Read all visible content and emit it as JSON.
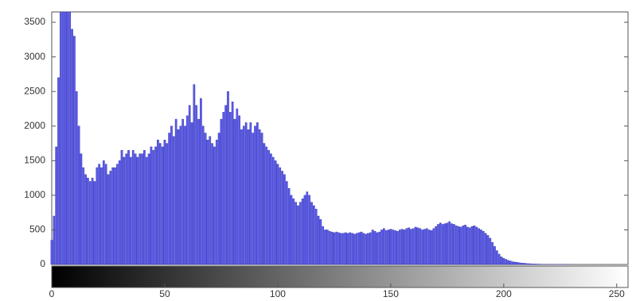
{
  "chart_data": {
    "type": "bar",
    "color": "#5b5bec",
    "edge_color": "#2f2fa8",
    "x": [
      0,
      1,
      2,
      3,
      4,
      5,
      6,
      7,
      8,
      9,
      10,
      11,
      12,
      13,
      14,
      15,
      16,
      17,
      18,
      19,
      20,
      21,
      22,
      23,
      24,
      25,
      26,
      27,
      28,
      29,
      30,
      31,
      32,
      33,
      34,
      35,
      36,
      37,
      38,
      39,
      40,
      41,
      42,
      43,
      44,
      45,
      46,
      47,
      48,
      49,
      50,
      51,
      52,
      53,
      54,
      55,
      56,
      57,
      58,
      59,
      60,
      61,
      62,
      63,
      64,
      65,
      66,
      67,
      68,
      69,
      70,
      71,
      72,
      73,
      74,
      75,
      76,
      77,
      78,
      79,
      80,
      81,
      82,
      83,
      84,
      85,
      86,
      87,
      88,
      89,
      90,
      91,
      92,
      93,
      94,
      95,
      96,
      97,
      98,
      99,
      100,
      101,
      102,
      103,
      104,
      105,
      106,
      107,
      108,
      109,
      110,
      111,
      112,
      113,
      114,
      115,
      116,
      117,
      118,
      119,
      120,
      121,
      122,
      123,
      124,
      125,
      126,
      127,
      128,
      129,
      130,
      131,
      132,
      133,
      134,
      135,
      136,
      137,
      138,
      139,
      140,
      141,
      142,
      143,
      144,
      145,
      146,
      147,
      148,
      149,
      150,
      151,
      152,
      153,
      154,
      155,
      156,
      157,
      158,
      159,
      160,
      161,
      162,
      163,
      164,
      165,
      166,
      167,
      168,
      169,
      170,
      171,
      172,
      173,
      174,
      175,
      176,
      177,
      178,
      179,
      180,
      181,
      182,
      183,
      184,
      185,
      186,
      187,
      188,
      189,
      190,
      191,
      192,
      193,
      194,
      195,
      196,
      197,
      198,
      199,
      200,
      201,
      202,
      203,
      204,
      205,
      206,
      207,
      208,
      209,
      210,
      211,
      212,
      213,
      214,
      215,
      216,
      217,
      218,
      219,
      220,
      221,
      222,
      223,
      224,
      225,
      226,
      227,
      228,
      229,
      230,
      231,
      232,
      233,
      234,
      235,
      236,
      237,
      238,
      239,
      240,
      241,
      242,
      243,
      244,
      245,
      246,
      247,
      248,
      249,
      250,
      251,
      252,
      253,
      254,
      255
    ],
    "values": [
      350,
      700,
      1700,
      2700,
      3650,
      3650,
      3650,
      3650,
      3650,
      3400,
      3300,
      2500,
      2000,
      1600,
      1400,
      1300,
      1250,
      1200,
      1250,
      1200,
      1400,
      1450,
      1400,
      1500,
      1450,
      1300,
      1350,
      1400,
      1400,
      1450,
      1500,
      1650,
      1550,
      1600,
      1650,
      1550,
      1650,
      1600,
      1550,
      1600,
      1600,
      1650,
      1550,
      1600,
      1700,
      1650,
      1700,
      1800,
      1750,
      1700,
      1800,
      1750,
      1900,
      2000,
      1850,
      2100,
      1950,
      2000,
      2100,
      2000,
      2150,
      2300,
      2050,
      2600,
      2300,
      2100,
      2400,
      2000,
      1900,
      1800,
      1850,
      1750,
      1700,
      1800,
      1900,
      2100,
      2200,
      2300,
      2500,
      2200,
      2350,
      2100,
      2250,
      2150,
      1950,
      2000,
      2050,
      1950,
      2050,
      1900,
      2000,
      2050,
      1950,
      1900,
      1750,
      1700,
      1650,
      1600,
      1550,
      1500,
      1450,
      1400,
      1350,
      1300,
      1200,
      1100,
      1000,
      950,
      900,
      850,
      900,
      950,
      1000,
      1050,
      1000,
      900,
      850,
      800,
      700,
      650,
      550,
      500,
      500,
      480,
      470,
      460,
      470,
      460,
      450,
      450,
      460,
      450,
      460,
      450,
      440,
      450,
      460,
      470,
      450,
      440,
      450,
      460,
      500,
      480,
      460,
      470,
      500,
      520,
      490,
      500,
      510,
      500,
      490,
      480,
      500,
      510,
      500,
      520,
      530,
      510,
      520,
      540,
      530,
      520,
      500,
      510,
      520,
      500,
      490,
      520,
      550,
      580,
      600,
      580,
      590,
      600,
      620,
      590,
      580,
      560,
      550,
      540,
      560,
      570,
      540,
      530,
      550,
      560,
      540,
      520,
      500,
      480,
      450,
      420,
      380,
      320,
      260,
      200,
      150,
      110,
      90,
      75,
      60,
      50,
      40,
      35,
      30,
      25,
      20,
      18,
      15,
      12,
      10,
      8,
      7,
      6,
      5,
      4,
      3,
      3,
      2,
      2,
      2,
      1,
      1,
      1,
      1,
      1,
      1,
      1,
      0,
      0,
      0,
      0,
      0,
      0,
      0,
      0,
      0,
      0,
      0,
      0,
      0,
      0,
      0,
      0,
      0,
      0,
      0,
      0,
      0,
      0,
      0,
      0,
      0,
      0
    ],
    "xlim": [
      0,
      255
    ],
    "ylim": [
      0,
      3650
    ],
    "xticks": [
      0,
      50,
      100,
      150,
      200,
      250
    ],
    "yticks": [
      0,
      500,
      1000,
      1500,
      2000,
      2500,
      3000,
      3500
    ]
  }
}
